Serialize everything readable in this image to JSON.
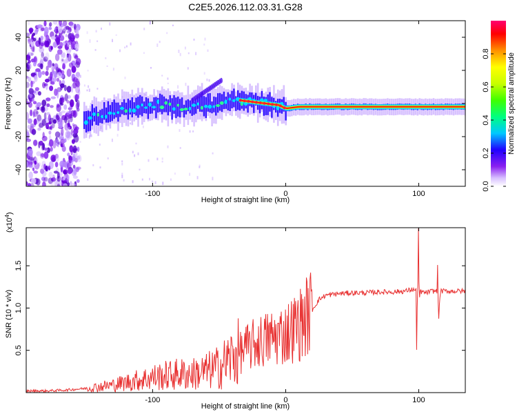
{
  "page": {
    "title": "C2E5.2026.112.03.31.G28"
  },
  "chart_data": [
    {
      "type": "heatmap",
      "title": "C2E5.2026.112.03.31.G28",
      "xlabel": "Height of straight line (km)",
      "ylabel": "Frequency (Hz)",
      "xlim": [
        -195,
        135
      ],
      "ylim": [
        -50,
        50
      ],
      "xticks": [
        -100,
        0,
        100
      ],
      "yticks": [
        -40,
        -20,
        0,
        20,
        40
      ],
      "xtick_labels": [
        "-100",
        "0",
        "100"
      ],
      "ytick_labels": [
        "-40",
        "-20",
        "0",
        "20",
        "40"
      ],
      "colorbar": {
        "label": "Normalized spectral amplitude",
        "range": [
          0,
          1
        ],
        "ticks": [
          0.0,
          0.2,
          0.4,
          0.6,
          0.8
        ],
        "tick_labels": [
          "0.0",
          "0.2",
          "0.4",
          "0.6",
          "0.8"
        ],
        "colors": [
          "#ffffff",
          "#c8a0ff",
          "#7000e8",
          "#0000ff",
          "#00ffff",
          "#00ff40",
          "#c8ff00",
          "#ffff00",
          "#ff8000",
          "#ff0000",
          "#ff0060"
        ]
      },
      "ridge": {
        "x": [
          -152,
          -145,
          -135,
          -125,
          -115,
          -105,
          -95,
          -85,
          -75,
          -65,
          -55,
          -45,
          -35,
          -25,
          -15,
          -5,
          0,
          10,
          30,
          60,
          90,
          100,
          135
        ],
        "freq": [
          -12,
          -8,
          -6,
          -4,
          -3,
          -2,
          0,
          -2,
          -3,
          -1,
          -1,
          1,
          2,
          1,
          0,
          -1,
          -3,
          -2,
          -2,
          -2,
          -2,
          -2,
          -2
        ]
      },
      "noise_region": {
        "x": [
          -195,
          -155
        ],
        "freq": [
          -50,
          50
        ]
      }
    },
    {
      "type": "line",
      "xlabel": "Height of straight line (km)",
      "ylabel": "SNR (10 * v/v)",
      "y_multiplier": "(x10",
      "y_multiplier_exp": "4",
      "y_multiplier_close": ")",
      "xlim": [
        -195,
        135
      ],
      "ylim": [
        0,
        1.95
      ],
      "xticks": [
        -100,
        0,
        100
      ],
      "yticks": [
        0.5,
        1.0,
        1.5
      ],
      "xtick_labels": [
        "-100",
        "0",
        "100"
      ],
      "ytick_labels": [
        "0.5",
        "1.0",
        "1.5"
      ],
      "series": [
        {
          "name": "SNR",
          "color": "#e83030",
          "x": [
            -195,
            -180,
            -165,
            -150,
            -140,
            -130,
            -120,
            -110,
            -100,
            -90,
            -80,
            -70,
            -60,
            -50,
            -40,
            -30,
            -20,
            -10,
            0,
            10,
            20,
            25,
            30,
            40,
            50,
            60,
            70,
            80,
            90,
            95,
            100,
            105,
            110,
            120,
            135
          ],
          "values": [
            0.02,
            0.02,
            0.03,
            0.05,
            0.07,
            0.09,
            0.12,
            0.15,
            0.18,
            0.2,
            0.22,
            0.22,
            0.25,
            0.3,
            0.42,
            0.52,
            0.6,
            0.65,
            0.7,
            0.8,
            0.98,
            1.1,
            1.15,
            1.17,
            1.18,
            1.18,
            1.19,
            1.19,
            1.2,
            1.22,
            1.2,
            1.18,
            1.2,
            1.2,
            1.2
          ]
        }
      ]
    }
  ]
}
